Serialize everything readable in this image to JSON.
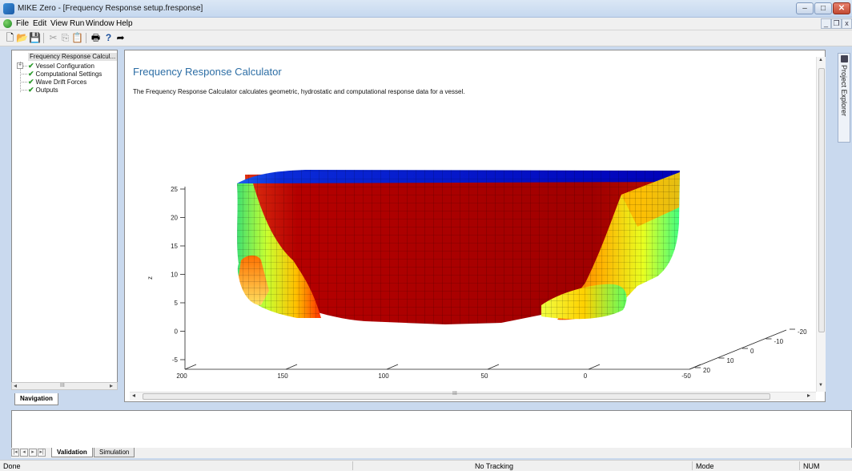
{
  "window": {
    "title": "MIKE Zero - [Frequency Response setup.fresponse]",
    "controls": {
      "minimize": "–",
      "maximize": "□",
      "close": "✕"
    }
  },
  "menu": {
    "items": [
      "File",
      "Edit",
      "View",
      "Run",
      "Window",
      "Help"
    ],
    "mdi_minimize": "_",
    "mdi_restore": "❐",
    "mdi_close": "x"
  },
  "toolbar": {
    "icons": [
      "new-document-icon",
      "open-folder-icon",
      "save-icon",
      "cut-icon",
      "copy-icon",
      "paste-icon",
      "print-icon",
      "help-icon",
      "context-help-icon"
    ],
    "glyphs": [
      "🗋",
      "📂",
      "💾",
      "✂",
      "⎘",
      "📋",
      "🖶",
      "?",
      "➦"
    ]
  },
  "navigation": {
    "root": "Frequency Response Calcul...",
    "items": [
      {
        "label": "Vessel Configuration",
        "expandable": true
      },
      {
        "label": "Computational Settings",
        "expandable": false
      },
      {
        "label": "Wave Drift Forces",
        "expandable": false
      },
      {
        "label": "Outputs",
        "expandable": false
      }
    ],
    "tab": "Navigation",
    "scroll_grip": "III"
  },
  "main": {
    "title": "Frequency Response Calculator",
    "description": "The Frequency Response Calculator calculates geometric, hydrostatic and computational response data for a vessel.",
    "scroll_grip": "III"
  },
  "chart_data": {
    "type": "surface3d",
    "zlabel": "z",
    "z_ticks": [
      "25",
      "20",
      "15",
      "10",
      "5",
      "0",
      "-5"
    ],
    "x_ticks": [
      "200",
      "150",
      "100",
      "50",
      "0",
      "-50"
    ],
    "y_ticks": [
      "-20",
      "-10",
      "0",
      "10",
      "20"
    ],
    "colormap": [
      "#00008f",
      "#0000ff",
      "#00ffff",
      "#ffff00",
      "#ff0000",
      "#800000"
    ]
  },
  "project_explorer": {
    "label": "Project Explorer"
  },
  "bottom": {
    "tabs": [
      "Validation",
      "Simulation"
    ],
    "active_tab": "Validation",
    "nav_glyphs": [
      "|◂",
      "◂",
      "▸",
      "▸|"
    ]
  },
  "status": {
    "left": "Done",
    "center": "No Tracking",
    "mode": "Mode",
    "num": "NUM"
  }
}
